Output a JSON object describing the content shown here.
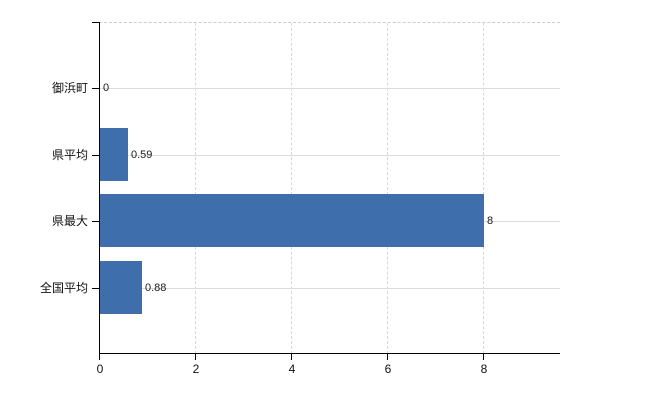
{
  "chart_data": {
    "type": "bar",
    "orientation": "horizontal",
    "title": "",
    "xlabel": "",
    "ylabel": "",
    "categories": [
      "御浜町",
      "県平均",
      "県最大",
      "全国平均"
    ],
    "values": [
      0,
      0.59,
      8,
      0.88
    ],
    "value_labels": [
      "0",
      "0.59",
      "8",
      "0.88"
    ],
    "x_ticks": [
      0,
      2,
      4,
      6,
      8
    ],
    "x_tick_labels": [
      "0",
      "2",
      "4",
      "6",
      "8"
    ],
    "xlim": [
      0,
      9.6
    ],
    "grid": true,
    "legend": false,
    "gridline_style": {
      "horizontal": "solid",
      "vertical": "dashed",
      "top_border": "dashed"
    },
    "colors": {
      "bar": "#3e6eac",
      "axis": "#000000",
      "grid_horizontal": "#d7ded5",
      "grid_vertical": "#d6d6d6",
      "plot_top_border": "#cfcccc",
      "text": "#111111",
      "background": "#ffffff"
    }
  }
}
